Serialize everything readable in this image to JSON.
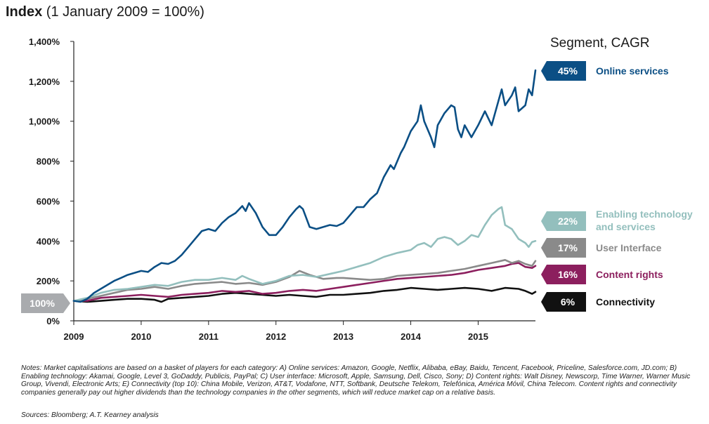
{
  "title": {
    "bold": "Index",
    "rest": " (1 January 2009 = 100%)"
  },
  "legend_title": "Segment, CAGR",
  "start_badge": "100%",
  "notes": "Notes: Market capitalisations are based on a basket of players for each category: A) Online services: Amazon, Google, Netflix, Alibaba, eBay, Baidu, Tencent, Facebook, Priceline, Salesforce.com, JD.com; B) Enabling technology: Akamai, Google, Level 3, GoDaddy, Publicis, PayPal; C) User interface: Microsoft, Apple, Samsung, Dell, Cisco, Sony; D) Content rights: Walt Disney, Newscorp, Time Warner, Warner Music Group, Vivendi, Electronic Arts; E) Connectivity (top 10): China Mobile, Verizon, AT&T, Vodafone, NTT, Softbank, Deutsche Telekom, Telefónica, América Móvil, China Telecom. Content rights and connectivity companies generally pay out higher dividends than the technology companies in the other segments, which will reduce market cap on a relative basis.",
  "sources": "Sources: Bloomberg; A.T. Kearney analysis",
  "colors": {
    "online": "#0b4f85",
    "enabling": "#93bfbd",
    "ui": "#8a8a8a",
    "content": "#8c1f5e",
    "connectivity": "#111111",
    "badge_start": "#a9abae",
    "axis": "#222222",
    "grid": "#e3e3e3"
  },
  "chart_data": {
    "type": "line",
    "xlabel": "",
    "ylabel": "",
    "x_ticks": [
      "2009",
      "2010",
      "2011",
      "2012",
      "2013",
      "2014",
      "2015"
    ],
    "y_ticks": [
      "0%",
      "200%",
      "400%",
      "600%",
      "800%",
      "1,000%",
      "1,200%",
      "1,400%"
    ],
    "ylim": [
      0,
      1400
    ],
    "xlim": [
      2009.0,
      2015.85
    ],
    "grid": false,
    "legend_position": "right",
    "series": [
      {
        "name": "Online services",
        "cagr": "45%",
        "color": "#0b4f85",
        "points": [
          [
            2009.0,
            100
          ],
          [
            2009.1,
            95
          ],
          [
            2009.2,
            110
          ],
          [
            2009.3,
            140
          ],
          [
            2009.4,
            160
          ],
          [
            2009.5,
            180
          ],
          [
            2009.6,
            200
          ],
          [
            2009.7,
            215
          ],
          [
            2009.8,
            230
          ],
          [
            2009.9,
            240
          ],
          [
            2010.0,
            250
          ],
          [
            2010.1,
            245
          ],
          [
            2010.2,
            270
          ],
          [
            2010.3,
            290
          ],
          [
            2010.4,
            285
          ],
          [
            2010.5,
            300
          ],
          [
            2010.6,
            330
          ],
          [
            2010.7,
            370
          ],
          [
            2010.8,
            410
          ],
          [
            2010.9,
            450
          ],
          [
            2011.0,
            460
          ],
          [
            2011.1,
            450
          ],
          [
            2011.2,
            490
          ],
          [
            2011.3,
            520
          ],
          [
            2011.4,
            540
          ],
          [
            2011.5,
            575
          ],
          [
            2011.55,
            550
          ],
          [
            2011.6,
            590
          ],
          [
            2011.7,
            540
          ],
          [
            2011.8,
            470
          ],
          [
            2011.9,
            430
          ],
          [
            2012.0,
            430
          ],
          [
            2012.1,
            470
          ],
          [
            2012.2,
            520
          ],
          [
            2012.3,
            560
          ],
          [
            2012.35,
            575
          ],
          [
            2012.4,
            560
          ],
          [
            2012.5,
            470
          ],
          [
            2012.6,
            460
          ],
          [
            2012.7,
            470
          ],
          [
            2012.8,
            480
          ],
          [
            2012.9,
            475
          ],
          [
            2013.0,
            490
          ],
          [
            2013.1,
            530
          ],
          [
            2013.2,
            570
          ],
          [
            2013.3,
            570
          ],
          [
            2013.4,
            610
          ],
          [
            2013.5,
            640
          ],
          [
            2013.6,
            720
          ],
          [
            2013.7,
            780
          ],
          [
            2013.75,
            760
          ],
          [
            2013.85,
            840
          ],
          [
            2013.9,
            870
          ],
          [
            2014.0,
            950
          ],
          [
            2014.1,
            1000
          ],
          [
            2014.15,
            1080
          ],
          [
            2014.2,
            1000
          ],
          [
            2014.3,
            920
          ],
          [
            2014.35,
            870
          ],
          [
            2014.4,
            980
          ],
          [
            2014.5,
            1040
          ],
          [
            2014.6,
            1080
          ],
          [
            2014.65,
            1070
          ],
          [
            2014.7,
            960
          ],
          [
            2014.75,
            920
          ],
          [
            2014.8,
            980
          ],
          [
            2014.9,
            920
          ],
          [
            2015.0,
            980
          ],
          [
            2015.1,
            1050
          ],
          [
            2015.2,
            980
          ],
          [
            2015.3,
            1100
          ],
          [
            2015.35,
            1160
          ],
          [
            2015.4,
            1080
          ],
          [
            2015.5,
            1130
          ],
          [
            2015.55,
            1170
          ],
          [
            2015.6,
            1050
          ],
          [
            2015.7,
            1080
          ],
          [
            2015.75,
            1160
          ],
          [
            2015.8,
            1130
          ],
          [
            2015.85,
            1255
          ]
        ]
      },
      {
        "name": "Enabling technology and services",
        "cagr": "22%",
        "color": "#93bfbd",
        "points": [
          [
            2009.0,
            100
          ],
          [
            2009.2,
            115
          ],
          [
            2009.4,
            140
          ],
          [
            2009.6,
            155
          ],
          [
            2009.8,
            160
          ],
          [
            2010.0,
            170
          ],
          [
            2010.2,
            180
          ],
          [
            2010.4,
            175
          ],
          [
            2010.6,
            195
          ],
          [
            2010.8,
            205
          ],
          [
            2011.0,
            205
          ],
          [
            2011.2,
            215
          ],
          [
            2011.4,
            205
          ],
          [
            2011.5,
            225
          ],
          [
            2011.6,
            210
          ],
          [
            2011.8,
            185
          ],
          [
            2012.0,
            200
          ],
          [
            2012.2,
            225
          ],
          [
            2012.4,
            230
          ],
          [
            2012.6,
            220
          ],
          [
            2012.8,
            235
          ],
          [
            2013.0,
            250
          ],
          [
            2013.2,
            270
          ],
          [
            2013.4,
            290
          ],
          [
            2013.6,
            320
          ],
          [
            2013.8,
            340
          ],
          [
            2014.0,
            355
          ],
          [
            2014.1,
            380
          ],
          [
            2014.2,
            390
          ],
          [
            2014.3,
            370
          ],
          [
            2014.4,
            410
          ],
          [
            2014.5,
            420
          ],
          [
            2014.6,
            410
          ],
          [
            2014.7,
            380
          ],
          [
            2014.8,
            400
          ],
          [
            2014.9,
            430
          ],
          [
            2015.0,
            420
          ],
          [
            2015.1,
            480
          ],
          [
            2015.2,
            530
          ],
          [
            2015.3,
            560
          ],
          [
            2015.35,
            570
          ],
          [
            2015.4,
            480
          ],
          [
            2015.5,
            460
          ],
          [
            2015.6,
            410
          ],
          [
            2015.7,
            390
          ],
          [
            2015.75,
            370
          ],
          [
            2015.8,
            395
          ],
          [
            2015.85,
            400
          ]
        ]
      },
      {
        "name": "User Interface",
        "cagr": "17%",
        "color": "#8a8a8a",
        "points": [
          [
            2009.0,
            100
          ],
          [
            2009.2,
            110
          ],
          [
            2009.4,
            125
          ],
          [
            2009.6,
            140
          ],
          [
            2009.8,
            155
          ],
          [
            2010.0,
            160
          ],
          [
            2010.2,
            170
          ],
          [
            2010.4,
            160
          ],
          [
            2010.6,
            175
          ],
          [
            2010.8,
            185
          ],
          [
            2011.0,
            190
          ],
          [
            2011.2,
            195
          ],
          [
            2011.4,
            185
          ],
          [
            2011.6,
            190
          ],
          [
            2011.8,
            180
          ],
          [
            2012.0,
            195
          ],
          [
            2012.2,
            220
          ],
          [
            2012.35,
            250
          ],
          [
            2012.5,
            230
          ],
          [
            2012.7,
            210
          ],
          [
            2012.9,
            215
          ],
          [
            2013.0,
            215
          ],
          [
            2013.2,
            210
          ],
          [
            2013.4,
            205
          ],
          [
            2013.6,
            210
          ],
          [
            2013.8,
            225
          ],
          [
            2014.0,
            230
          ],
          [
            2014.2,
            235
          ],
          [
            2014.4,
            240
          ],
          [
            2014.6,
            250
          ],
          [
            2014.8,
            260
          ],
          [
            2015.0,
            275
          ],
          [
            2015.2,
            290
          ],
          [
            2015.4,
            305
          ],
          [
            2015.5,
            290
          ],
          [
            2015.6,
            300
          ],
          [
            2015.7,
            285
          ],
          [
            2015.8,
            275
          ],
          [
            2015.85,
            300
          ]
        ]
      },
      {
        "name": "Content rights",
        "cagr": "16%",
        "color": "#8c1f5e",
        "points": [
          [
            2009.0,
            100
          ],
          [
            2009.2,
            100
          ],
          [
            2009.4,
            115
          ],
          [
            2009.6,
            120
          ],
          [
            2009.8,
            125
          ],
          [
            2010.0,
            130
          ],
          [
            2010.2,
            125
          ],
          [
            2010.4,
            120
          ],
          [
            2010.6,
            130
          ],
          [
            2010.8,
            135
          ],
          [
            2011.0,
            140
          ],
          [
            2011.2,
            150
          ],
          [
            2011.4,
            145
          ],
          [
            2011.6,
            150
          ],
          [
            2011.8,
            135
          ],
          [
            2012.0,
            140
          ],
          [
            2012.2,
            150
          ],
          [
            2012.4,
            155
          ],
          [
            2012.6,
            150
          ],
          [
            2012.8,
            160
          ],
          [
            2013.0,
            170
          ],
          [
            2013.2,
            180
          ],
          [
            2013.4,
            190
          ],
          [
            2013.6,
            200
          ],
          [
            2013.8,
            210
          ],
          [
            2014.0,
            215
          ],
          [
            2014.2,
            220
          ],
          [
            2014.4,
            225
          ],
          [
            2014.6,
            230
          ],
          [
            2014.8,
            240
          ],
          [
            2015.0,
            255
          ],
          [
            2015.2,
            265
          ],
          [
            2015.4,
            275
          ],
          [
            2015.5,
            285
          ],
          [
            2015.6,
            290
          ],
          [
            2015.7,
            270
          ],
          [
            2015.8,
            265
          ],
          [
            2015.85,
            275
          ]
        ]
      },
      {
        "name": "Connectivity",
        "cagr": "6%",
        "color": "#111111",
        "points": [
          [
            2009.0,
            100
          ],
          [
            2009.2,
            95
          ],
          [
            2009.4,
            100
          ],
          [
            2009.6,
            105
          ],
          [
            2009.8,
            110
          ],
          [
            2010.0,
            110
          ],
          [
            2010.2,
            105
          ],
          [
            2010.3,
            95
          ],
          [
            2010.4,
            110
          ],
          [
            2010.6,
            115
          ],
          [
            2010.8,
            120
          ],
          [
            2011.0,
            125
          ],
          [
            2011.2,
            135
          ],
          [
            2011.4,
            140
          ],
          [
            2011.6,
            135
          ],
          [
            2011.8,
            130
          ],
          [
            2012.0,
            125
          ],
          [
            2012.2,
            130
          ],
          [
            2012.4,
            125
          ],
          [
            2012.6,
            120
          ],
          [
            2012.8,
            130
          ],
          [
            2013.0,
            130
          ],
          [
            2013.2,
            135
          ],
          [
            2013.4,
            140
          ],
          [
            2013.6,
            150
          ],
          [
            2013.8,
            155
          ],
          [
            2014.0,
            165
          ],
          [
            2014.2,
            160
          ],
          [
            2014.4,
            155
          ],
          [
            2014.6,
            160
          ],
          [
            2014.8,
            165
          ],
          [
            2015.0,
            160
          ],
          [
            2015.2,
            150
          ],
          [
            2015.4,
            165
          ],
          [
            2015.6,
            160
          ],
          [
            2015.7,
            150
          ],
          [
            2015.8,
            135
          ],
          [
            2015.85,
            145
          ]
        ]
      }
    ]
  }
}
